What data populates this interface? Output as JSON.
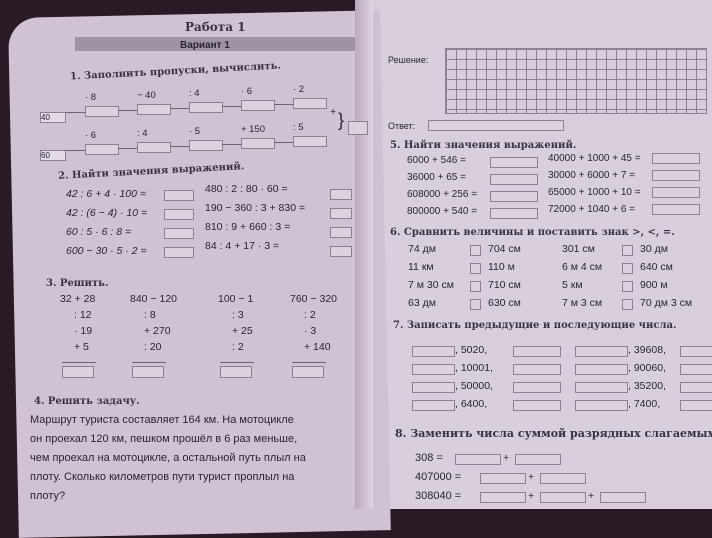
{
  "header": {
    "title": "Работа 1",
    "variant": "Вариант 1"
  },
  "task1": {
    "title": "1. Заполнить пропуски, вычислить.",
    "row1": {
      "start": "40",
      "ops": [
        "· 8",
        "− 40",
        ": 4",
        "· 6",
        "· 2"
      ]
    },
    "row2": {
      "start": "60",
      "ops": [
        "· 6",
        ": 4",
        "· 5",
        "+ 150",
        ": 5"
      ]
    },
    "plus": "+"
  },
  "task2": {
    "title": "2. Найти значения выражений.",
    "left": [
      "42 : 6 + 4 · 100 =",
      "42 : (6 − 4) · 10 =",
      "60 : 5 · 6 : 8 =",
      "600 − 30 · 5 · 2 ="
    ],
    "right": [
      "480 : 2 : 80 · 60 =",
      "190 − 360 : 3 + 830 =",
      "810 : 9 + 660 : 3 =",
      "84 : 4 + 17 · 3 ="
    ]
  },
  "task3": {
    "title": "3. Решить.",
    "columns": [
      [
        "32 + 28",
        ": 12",
        "· 19",
        "+ 5"
      ],
      [
        "840 − 120",
        ": 8",
        "+ 270",
        ": 20"
      ],
      [
        "100 − 1",
        ": 3",
        "+ 25",
        ": 2"
      ],
      [
        "760 − 320",
        ": 2",
        "· 3",
        "+ 140"
      ]
    ]
  },
  "task4": {
    "title": "4. Решить задачу.",
    "lines": [
      "Маршрут туриста составляет 164 км. На мотоцикле",
      "он проехал 120 км, пешком прошёл в 6 раз меньше,",
      "чем проехал на мотоцикле, а остальной путь плыл на",
      "плоту. Сколько километров пути турист проплыл на",
      "плоту?"
    ]
  },
  "solution": {
    "label": "Решение:",
    "answer_label": "Ответ:"
  },
  "task5": {
    "title": "5. Найти значения выражений.",
    "left": [
      "6000 + 546 =",
      "36000 + 65 =",
      "608000 + 256 =",
      "800000 + 540 ="
    ],
    "right": [
      "40000 + 1000 + 45 =",
      "30000 + 6000 + 7 =",
      "65000 + 1000 + 10 =",
      "72000 + 1040 + 6 ="
    ]
  },
  "task6": {
    "title": "6. Сравнить величины и поставить знак >, <, =.",
    "pairs": [
      [
        "74 дм",
        "704 см",
        "301 см",
        "30 дм"
      ],
      [
        "11 км",
        "110 м",
        "6 м 4 см",
        "640 см"
      ],
      [
        "7 м 30 см",
        "710 см",
        "5 км",
        "900 м"
      ],
      [
        "63 дм",
        "630 см",
        "7 м 3 см",
        "70 дм 3 см"
      ]
    ]
  },
  "task7": {
    "title": "7. Записать предыдущие и последующие числа.",
    "left": [
      ", 5020,",
      ", 10001,",
      ", 50000,",
      ", 6400,"
    ],
    "right": [
      ", 39608,",
      ", 90060,",
      ", 35200,",
      ", 7400,"
    ]
  },
  "task8": {
    "title": "8. Заменить числа суммой разрядных слагаемых",
    "rows": [
      {
        "n": "308 =",
        "parts": 2
      },
      {
        "n": "407000 =",
        "parts": 2
      },
      {
        "n": "308040 =",
        "parts": 3
      }
    ],
    "plus": "+"
  }
}
